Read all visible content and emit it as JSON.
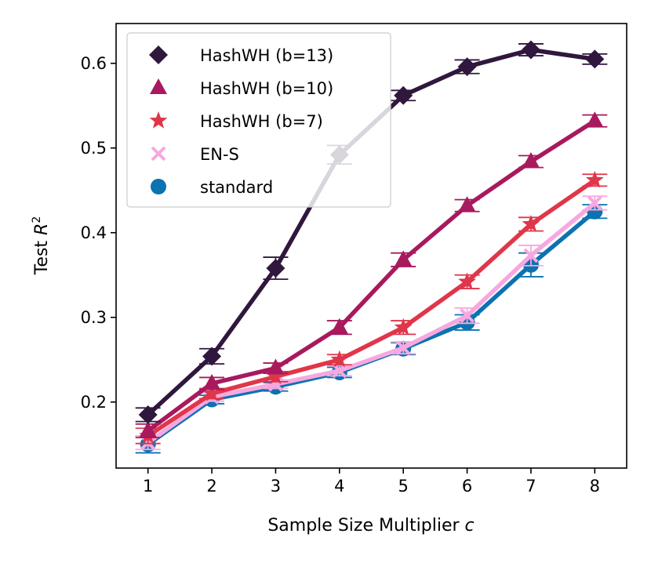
{
  "chart_data": {
    "type": "line",
    "title": "",
    "xlabel": "Sample Size Multiplier",
    "xlabel_var": "c",
    "ylabel": "Test",
    "ylabel_var": "R",
    "ylabel_sup": "2",
    "x": [
      1,
      2,
      3,
      4,
      5,
      6,
      7,
      8
    ],
    "xlim": [
      0.5,
      8.5
    ],
    "ylim": [
      0.122,
      0.647
    ],
    "x_ticks": [
      1,
      2,
      3,
      4,
      5,
      6,
      7,
      8
    ],
    "x_tick_labels": [
      "1",
      "2",
      "3",
      "4",
      "5",
      "6",
      "7",
      "8"
    ],
    "y_ticks": [
      0.2,
      0.3,
      0.4,
      0.5,
      0.6
    ],
    "y_tick_labels": [
      "0.2",
      "0.3",
      "0.4",
      "0.5",
      "0.6"
    ],
    "grid": false,
    "legend_position": "top-left",
    "series": [
      {
        "name": "standard",
        "marker": "circle",
        "color": "#0C72B0",
        "values": [
          0.15,
          0.203,
          0.218,
          0.235,
          0.263,
          0.294,
          0.362,
          0.425
        ],
        "errors": [
          0.01,
          0.005,
          0.005,
          0.006,
          0.007,
          0.009,
          0.014,
          0.008
        ]
      },
      {
        "name": "EN-S",
        "marker": "x",
        "color": "#F7A8E0",
        "values": [
          0.152,
          0.206,
          0.221,
          0.237,
          0.264,
          0.302,
          0.373,
          0.435
        ],
        "errors": [
          0.008,
          0.005,
          0.005,
          0.006,
          0.007,
          0.009,
          0.012,
          0.008
        ]
      },
      {
        "name": "HashWH (b=7)",
        "marker": "star",
        "color": "#E0364A",
        "values": [
          0.16,
          0.21,
          0.23,
          0.25,
          0.288,
          0.342,
          0.41,
          0.462
        ],
        "errors": [
          0.009,
          0.006,
          0.006,
          0.006,
          0.008,
          0.008,
          0.008,
          0.007
        ]
      },
      {
        "name": "HashWH (b=10)",
        "marker": "triangle",
        "color": "#A8195E",
        "values": [
          0.166,
          0.222,
          0.24,
          0.288,
          0.368,
          0.432,
          0.484,
          0.532
        ],
        "errors": [
          0.008,
          0.007,
          0.006,
          0.008,
          0.008,
          0.007,
          0.007,
          0.007
        ]
      },
      {
        "name": "HashWH (b=13)",
        "marker": "diamond",
        "color": "#30173D",
        "values": [
          0.185,
          0.254,
          0.358,
          0.492,
          0.562,
          0.596,
          0.616,
          0.605
        ],
        "errors": [
          0.008,
          0.009,
          0.013,
          0.011,
          0.006,
          0.008,
          0.007,
          0.006
        ]
      }
    ],
    "legend_order": [
      "HashWH (b=13)",
      "HashWH (b=10)",
      "HashWH (b=7)",
      "EN-S",
      "standard"
    ]
  }
}
